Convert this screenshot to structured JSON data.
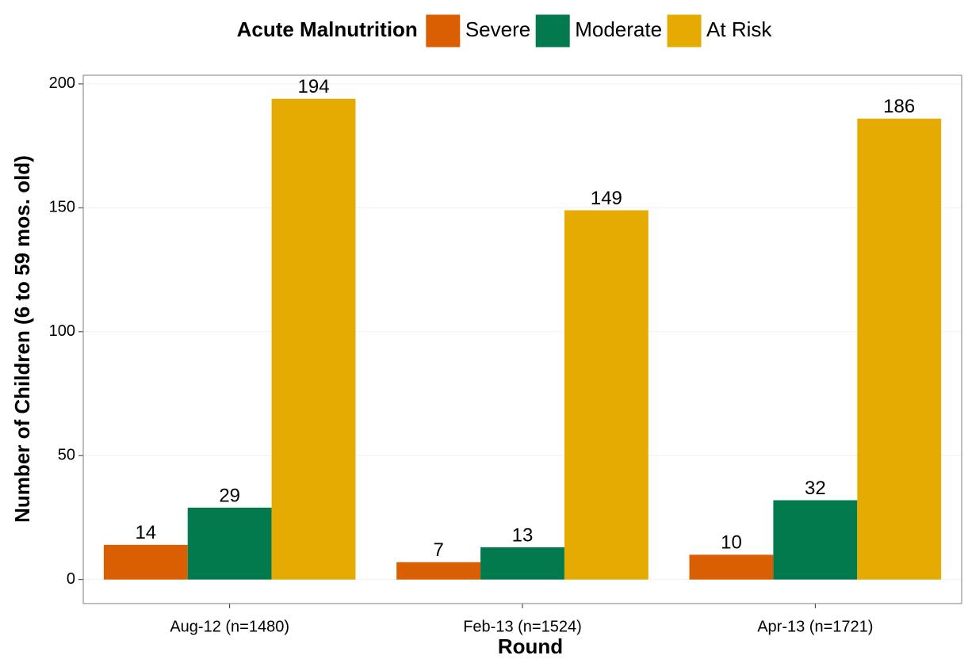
{
  "chart_data": {
    "type": "bar",
    "legend_title": "Acute Malnutrition",
    "legend_position": "top",
    "x_label": "Round",
    "y_label": "Number of Children (6 to 59 mos. old)",
    "categories": [
      "Aug-12 (n=1480)",
      "Feb-13 (n=1524)",
      "Apr-13 (n=1721)"
    ],
    "series": [
      {
        "name": "Severe",
        "color": "#d95f02",
        "values": [
          14,
          7,
          10
        ]
      },
      {
        "name": "Moderate",
        "color": "#037a4e",
        "values": [
          29,
          13,
          32
        ]
      },
      {
        "name": "At Risk",
        "color": "#e6ab02",
        "values": [
          194,
          149,
          186
        ]
      }
    ],
    "ylim": [
      -9.7,
      203.5
    ],
    "yticks": [
      0,
      50,
      100,
      150,
      200
    ],
    "grid": true
  }
}
